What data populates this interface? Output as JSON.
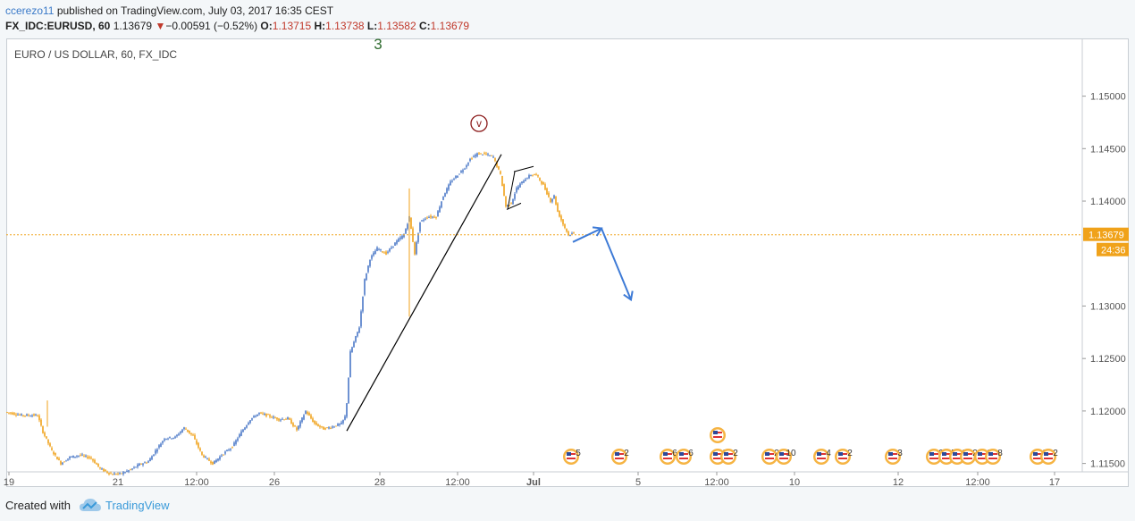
{
  "header": {
    "author": "ccerezo11",
    "published_text": "published on TradingView.com, July 03, 2017 16:35 CEST",
    "symbol_interval": "FX_IDC:EURUSD, 60",
    "last": "1.13679",
    "change": "−0.00591 (−0.52%)",
    "o_label": "O:",
    "o_value": "1.13715",
    "h_label": "H:",
    "h_value": "1.13738",
    "l_label": "L:",
    "l_value": "1.13582",
    "c_label": "C:",
    "c_value": "1.13679"
  },
  "chart_data": {
    "type": "candlestick",
    "title": "EURO / US DOLLAR, 60, FX_IDC",
    "ylim": [
      1.1142,
      1.1555
    ],
    "y_ticks": [
      "1.15000",
      "1.14500",
      "1.14000",
      "1.13000",
      "1.12500",
      "1.12000",
      "1.11500"
    ],
    "x_ticks": [
      "19",
      "21",
      "12:00",
      "26",
      "28",
      "12:00",
      "Jul",
      "5",
      "12:00",
      "10",
      "12",
      "12:00",
      "17"
    ],
    "current_price": "1.13679",
    "current_price_value": 1.13679,
    "countdown": "24:36",
    "price_path": [
      [
        0,
        1.1199
      ],
      [
        18,
        1.1196
      ],
      [
        36,
        1.1196
      ],
      [
        42,
        1.118
      ],
      [
        52,
        1.1162
      ],
      [
        62,
        1.115
      ],
      [
        72,
        1.1156
      ],
      [
        84,
        1.1158
      ],
      [
        96,
        1.1155
      ],
      [
        106,
        1.1145
      ],
      [
        118,
        1.114
      ],
      [
        128,
        1.114
      ],
      [
        140,
        1.1144
      ],
      [
        150,
        1.1149
      ],
      [
        160,
        1.1152
      ],
      [
        168,
        1.1162
      ],
      [
        178,
        1.1174
      ],
      [
        190,
        1.1175
      ],
      [
        200,
        1.1184
      ],
      [
        210,
        1.1176
      ],
      [
        220,
        1.1158
      ],
      [
        232,
        1.115
      ],
      [
        242,
        1.1158
      ],
      [
        254,
        1.1166
      ],
      [
        264,
        1.118
      ],
      [
        274,
        1.1192
      ],
      [
        284,
        1.1198
      ],
      [
        296,
        1.1195
      ],
      [
        306,
        1.1192
      ],
      [
        316,
        1.1193
      ],
      [
        326,
        1.1182
      ],
      [
        336,
        1.12
      ],
      [
        346,
        1.1188
      ],
      [
        356,
        1.1183
      ],
      [
        366,
        1.1185
      ],
      [
        376,
        1.1188
      ],
      [
        381,
        1.1196
      ],
      [
        386,
        1.1256
      ],
      [
        396,
        1.128
      ],
      [
        402,
        1.1325
      ],
      [
        408,
        1.1345
      ],
      [
        416,
        1.1355
      ],
      [
        426,
        1.135
      ],
      [
        436,
        1.136
      ],
      [
        446,
        1.1368
      ],
      [
        452,
        1.1385
      ],
      [
        458,
        1.135
      ],
      [
        464,
        1.138
      ],
      [
        472,
        1.1385
      ],
      [
        482,
        1.1385
      ],
      [
        490,
        1.1405
      ],
      [
        498,
        1.1418
      ],
      [
        506,
        1.1425
      ],
      [
        514,
        1.1432
      ],
      [
        520,
        1.144
      ],
      [
        528,
        1.1445
      ],
      [
        536,
        1.1445
      ],
      [
        546,
        1.1442
      ],
      [
        554,
        1.1425
      ],
      [
        560,
        1.1395
      ],
      [
        566,
        1.1398
      ],
      [
        572,
        1.1412
      ],
      [
        580,
        1.142
      ],
      [
        588,
        1.1425
      ],
      [
        594,
        1.1425
      ],
      [
        602,
        1.1415
      ],
      [
        610,
        1.14
      ],
      [
        614,
        1.1405
      ],
      [
        618,
        1.139
      ],
      [
        624,
        1.1378
      ],
      [
        630,
        1.1368
      ],
      [
        634,
        1.1369
      ]
    ],
    "trendline": {
      "from": [
        381,
        1.1181
      ],
      "to": [
        554,
        1.14445
      ]
    },
    "channel_lines": [
      {
        "from": [
          568,
          1.1428
        ],
        "to": [
          590,
          1.1433
        ]
      },
      {
        "from": [
          560,
          1.1392
        ],
        "to": [
          576,
          1.1398
        ]
      }
    ],
    "projection": [
      [
        634,
        1.1361
      ],
      [
        666,
        1.1374
      ],
      [
        699,
        1.1306
      ]
    ],
    "wave_labels": [
      {
        "text": "3",
        "x": 416,
        "y": 1.1558
      },
      {
        "text": "v",
        "x": 529,
        "y": 1.1474
      }
    ],
    "events": [
      {
        "x": 632,
        "count": "5"
      },
      {
        "x": 686,
        "count": "2"
      },
      {
        "x": 740,
        "count": "6"
      },
      {
        "x": 758,
        "count": "6"
      },
      {
        "x": 796,
        "count": "2"
      },
      {
        "x": 808,
        "count": "2"
      },
      {
        "x": 854,
        "count": "2"
      },
      {
        "x": 870,
        "count": "10"
      },
      {
        "x": 912,
        "count": "4"
      },
      {
        "x": 936,
        "count": "2"
      },
      {
        "x": 992,
        "count": "3"
      },
      {
        "x": 1038,
        "count": "2"
      },
      {
        "x": 1052,
        "count": "5"
      },
      {
        "x": 1064,
        "count": "2"
      },
      {
        "x": 1076,
        "count": "2"
      },
      {
        "x": 1092,
        "count": "2"
      },
      {
        "x": 1104,
        "count": "8"
      },
      {
        "x": 1154,
        "count": "2"
      },
      {
        "x": 1166,
        "count": "2"
      }
    ],
    "top_events": [
      {
        "x": 796,
        "count": ""
      }
    ],
    "colors": {
      "up": "#4a78c7",
      "down": "#f0a21a",
      "price_line": "#f0a21a",
      "projection": "#3d7ad6",
      "trendline": "#000000"
    }
  },
  "footer": {
    "created_label": "Created with",
    "brand": "TradingView"
  }
}
